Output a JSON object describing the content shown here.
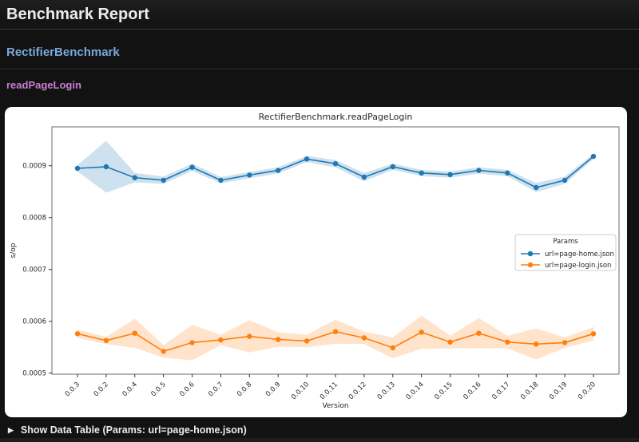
{
  "page": {
    "title": "Benchmark Report",
    "benchmark_class": "RectifierBenchmark",
    "benchmark_method": "readPageLogin"
  },
  "data_table_toggle": {
    "icon": "▶",
    "label": "Show Data Table (Params: url=page-home.json)"
  },
  "colors": {
    "page_background": "#121212",
    "title_text": "#ececec",
    "class_heading_text": "#7aa9dc",
    "method_heading_text": "#c77fd0",
    "chart_background": "#ffffff",
    "series_home": "#1f77b4",
    "series_login": "#ff7f0e"
  },
  "chart_data": {
    "type": "line",
    "title": "RectifierBenchmark.readPageLogin",
    "xlabel": "Version",
    "ylabel": "s/op",
    "grid": false,
    "xtick_rotation": 45,
    "categories": [
      "0.0.3",
      "0.0.2",
      "0.0.4",
      "0.0.5",
      "0.0.6",
      "0.0.7",
      "0.0.8",
      "0.0.9",
      "0.0.10",
      "0.0.11",
      "0.0.12",
      "0.0.13",
      "0.0.14",
      "0.0.15",
      "0.0.16",
      "0.0.17",
      "0.0.18",
      "0.0.19",
      "0.0.20"
    ],
    "yticks": [
      "0.0005",
      "0.0006",
      "0.0007",
      "0.0008",
      "0.0009"
    ],
    "ylim": [
      0.000498,
      0.000975
    ],
    "legend": {
      "title": "Params",
      "position": "center-right"
    },
    "series": [
      {
        "name": "url=page-home.json",
        "color": "#1f77b4",
        "values": [
          0.000895,
          0.000898,
          0.000877,
          0.000872,
          0.000897,
          0.000872,
          0.000882,
          0.000891,
          0.000913,
          0.000904,
          0.000878,
          0.000898,
          0.000886,
          0.000883,
          0.000891,
          0.000886,
          0.000858,
          0.000872,
          0.000918
        ],
        "band_halfwidth": [
          6e-06,
          5e-05,
          9e-06,
          7e-06,
          7e-06,
          6e-06,
          6e-06,
          6e-06,
          6e-06,
          7e-06,
          8e-06,
          6e-06,
          6e-06,
          6e-06,
          6e-06,
          6e-06,
          9e-06,
          7e-06,
          5e-06
        ]
      },
      {
        "name": "url=page-login.json",
        "color": "#ff7f0e",
        "values": [
          0.000576,
          0.000563,
          0.000577,
          0.000542,
          0.000559,
          0.000564,
          0.000571,
          0.000565,
          0.000562,
          0.00058,
          0.000568,
          0.000549,
          0.000579,
          0.00056,
          0.000577,
          0.00056,
          0.000556,
          0.000559,
          0.000576
        ],
        "band_halfwidth": [
          8e-06,
          7e-06,
          2.8e-05,
          1.2e-05,
          3.4e-05,
          1e-05,
          3.1e-05,
          1.4e-05,
          1.2e-05,
          2.3e-05,
          1.2e-05,
          2e-05,
          3.2e-05,
          1.2e-05,
          2.9e-05,
          1.2e-05,
          3e-05,
          1e-05,
          1.3e-05
        ]
      }
    ]
  }
}
